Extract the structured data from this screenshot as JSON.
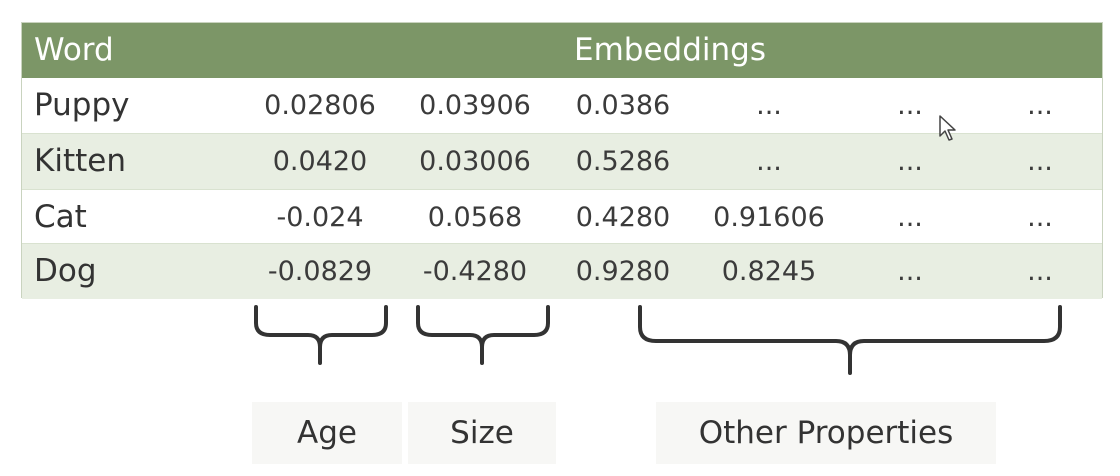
{
  "table": {
    "header": {
      "word": "Word",
      "embeddings": "Embeddings"
    },
    "rows": [
      {
        "word": "Puppy",
        "values": [
          "0.02806",
          "0.03906",
          "0.0386",
          "...",
          "...",
          "..."
        ]
      },
      {
        "word": "Kitten",
        "values": [
          "0.0420",
          "0.03006",
          "0.5286",
          "...",
          "...",
          "..."
        ]
      },
      {
        "word": "Cat",
        "values": [
          "-0.024",
          "0.0568",
          "0.4280",
          "0.91606",
          "...",
          "..."
        ]
      },
      {
        "word": "Dog",
        "values": [
          "-0.0829",
          "-0.4280",
          "0.9280",
          "0.8245",
          "...",
          "..."
        ]
      }
    ]
  },
  "groups": {
    "age": "Age",
    "size": "Size",
    "other": "Other Properties"
  },
  "colors": {
    "header": "#7c9667",
    "alt_row": "#e8eee2"
  },
  "icons": [
    "mouse-cursor-icon"
  ]
}
